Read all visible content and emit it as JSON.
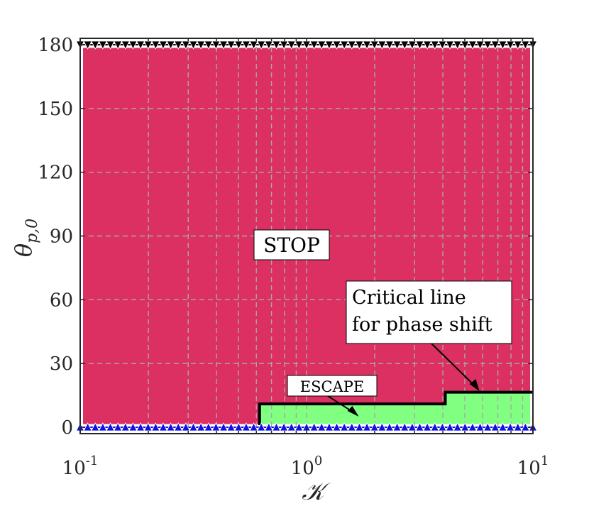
{
  "chart_data": {
    "type": "area",
    "title": "",
    "xlabel": "𝒦",
    "ylabel": "θ",
    "ylabel_sub": "p,0",
    "xscale": "log",
    "xlim": [
      0.1,
      10
    ],
    "ylim": [
      -3,
      183
    ],
    "x_ticks": [
      {
        "base": "10",
        "exp": "-1",
        "value": 0.1
      },
      {
        "base": "10",
        "exp": "0",
        "value": 1
      },
      {
        "base": "10",
        "exp": "1",
        "value": 10
      }
    ],
    "y_ticks": [
      "0",
      "30",
      "60",
      "90",
      "120",
      "150",
      "180"
    ],
    "grid": true,
    "regions": [
      {
        "name": "STOP",
        "color": "#dc3062"
      },
      {
        "name": "ESCAPE",
        "color": "#80ff80"
      }
    ],
    "critical_line": {
      "x": [
        0.62,
        0.62,
        4.1,
        4.1,
        10
      ],
      "y": [
        1,
        11,
        11,
        16.5,
        16.5
      ]
    },
    "markers": {
      "top": {
        "y": 180,
        "color": "#000000",
        "shape": "triangle-down"
      },
      "bottom": {
        "y": 0,
        "color": "#1010e0",
        "shape": "triangle-up"
      }
    },
    "annotations": {
      "stop": {
        "text": "STOP"
      },
      "escape": {
        "text": "ESCAPE",
        "arrow_to": [
          1.7,
          5
        ]
      },
      "critical": {
        "lines": [
          "Critical line",
          "for phase shift"
        ],
        "arrow_to": [
          5.8,
          17
        ]
      }
    }
  }
}
